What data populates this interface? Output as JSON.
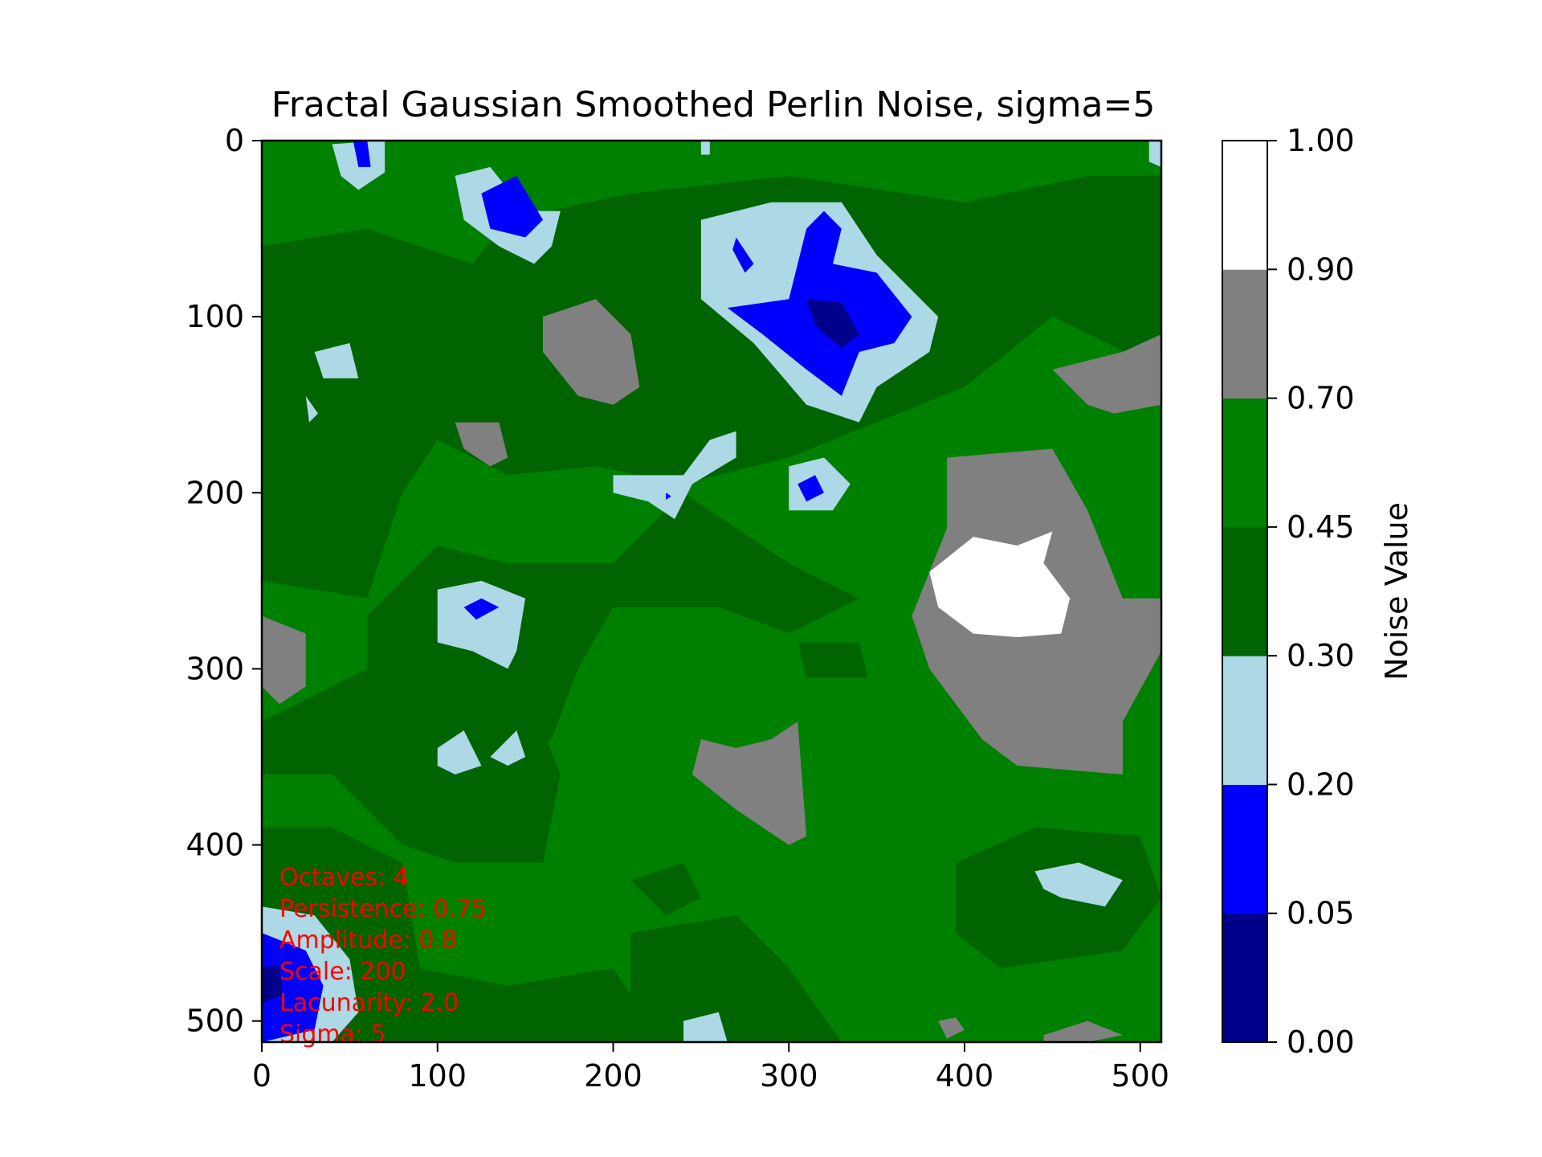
{
  "chart_data": {
    "type": "heatmap",
    "title": "Fractal Gaussian Smoothed Perlin Noise, sigma=5",
    "xlim": [
      0,
      512
    ],
    "ylim": [
      512,
      0
    ],
    "x_ticks": [
      0,
      100,
      200,
      300,
      400,
      500
    ],
    "y_ticks": [
      0,
      100,
      200,
      300,
      400,
      500
    ],
    "grid": false,
    "colorbar": {
      "label": "Noise Value",
      "boundaries": [
        0.0,
        0.05,
        0.2,
        0.3,
        0.45,
        0.7,
        0.9,
        1.0
      ],
      "tick_labels": [
        "0.00",
        "0.05",
        "0.20",
        "0.30",
        "0.45",
        "0.70",
        "0.90",
        "1.00"
      ],
      "colors": [
        "#00008b",
        "#0000ff",
        "#add8e6",
        "#006400",
        "#008000",
        "#808080",
        "#ffffff"
      ]
    },
    "annotation": {
      "color": "#ff0000",
      "lines": [
        "Octaves: 4",
        "Persistence: 0.75",
        "Amplitude: 0.8",
        "Scale: 200",
        "Lacunarity: 2.0",
        "Sigma: 5"
      ]
    },
    "regions": [
      {
        "level": 3,
        "points": [
          [
            0,
            60
          ],
          [
            60,
            50
          ],
          [
            120,
            70
          ],
          [
            140,
            45
          ],
          [
            210,
            30
          ],
          [
            300,
            20
          ],
          [
            400,
            35
          ],
          [
            470,
            20
          ],
          [
            512,
            20
          ],
          [
            512,
            130
          ],
          [
            450,
            100
          ],
          [
            400,
            140
          ],
          [
            300,
            180
          ],
          [
            240,
            195
          ],
          [
            190,
            185
          ],
          [
            140,
            190
          ],
          [
            100,
            170
          ],
          [
            80,
            200
          ],
          [
            60,
            260
          ],
          [
            0,
            250
          ]
        ]
      },
      {
        "level": 3,
        "points": [
          [
            140,
            240
          ],
          [
            200,
            240
          ],
          [
            240,
            200
          ],
          [
            300,
            240
          ],
          [
            340,
            260
          ],
          [
            300,
            280
          ],
          [
            260,
            265
          ],
          [
            200,
            265
          ],
          [
            180,
            300
          ],
          [
            165,
            340
          ],
          [
            140,
            360
          ],
          [
            90,
            340
          ],
          [
            60,
            320
          ],
          [
            60,
            270
          ],
          [
            100,
            230
          ]
        ]
      },
      {
        "level": 3,
        "points": [
          [
            0,
            330
          ],
          [
            60,
            300
          ],
          [
            150,
            310
          ],
          [
            170,
            360
          ],
          [
            160,
            410
          ],
          [
            110,
            410
          ],
          [
            80,
            400
          ],
          [
            40,
            360
          ],
          [
            0,
            360
          ]
        ]
      },
      {
        "level": 3,
        "points": [
          [
            0,
            390
          ],
          [
            40,
            390
          ],
          [
            80,
            410
          ],
          [
            90,
            470
          ],
          [
            140,
            480
          ],
          [
            200,
            470
          ],
          [
            220,
            500
          ],
          [
            220,
            512
          ],
          [
            0,
            512
          ]
        ]
      },
      {
        "level": 3,
        "points": [
          [
            210,
            450
          ],
          [
            270,
            440
          ],
          [
            300,
            470
          ],
          [
            330,
            512
          ],
          [
            210,
            512
          ]
        ]
      },
      {
        "level": 3,
        "points": [
          [
            395,
            410
          ],
          [
            440,
            390
          ],
          [
            500,
            395
          ],
          [
            512,
            430
          ],
          [
            490,
            460
          ],
          [
            420,
            470
          ],
          [
            395,
            450
          ]
        ]
      },
      {
        "level": 3,
        "points": [
          [
            210,
            420
          ],
          [
            240,
            410
          ],
          [
            250,
            430
          ],
          [
            230,
            440
          ]
        ]
      },
      {
        "level": 3,
        "points": [
          [
            305,
            285
          ],
          [
            340,
            285
          ],
          [
            345,
            305
          ],
          [
            310,
            305
          ]
        ]
      },
      {
        "level": 5,
        "points": [
          [
            160,
            100
          ],
          [
            190,
            90
          ],
          [
            210,
            110
          ],
          [
            215,
            140
          ],
          [
            200,
            150
          ],
          [
            180,
            145
          ],
          [
            160,
            120
          ]
        ]
      },
      {
        "level": 5,
        "points": [
          [
            110,
            160
          ],
          [
            135,
            160
          ],
          [
            140,
            180
          ],
          [
            130,
            185
          ],
          [
            115,
            175
          ]
        ]
      },
      {
        "level": 5,
        "points": [
          [
            0,
            270
          ],
          [
            25,
            280
          ],
          [
            25,
            310
          ],
          [
            10,
            320
          ],
          [
            0,
            310
          ]
        ]
      },
      {
        "level": 5,
        "points": [
          [
            390,
            180
          ],
          [
            450,
            175
          ],
          [
            470,
            210
          ],
          [
            490,
            260
          ],
          [
            512,
            260
          ],
          [
            512,
            290
          ],
          [
            490,
            330
          ],
          [
            490,
            360
          ],
          [
            430,
            355
          ],
          [
            410,
            340
          ],
          [
            380,
            300
          ],
          [
            370,
            270
          ],
          [
            390,
            220
          ]
        ]
      },
      {
        "level": 5,
        "points": [
          [
            450,
            130
          ],
          [
            490,
            120
          ],
          [
            512,
            110
          ],
          [
            512,
            150
          ],
          [
            485,
            155
          ],
          [
            470,
            150
          ]
        ]
      },
      {
        "level": 5,
        "points": [
          [
            250,
            340
          ],
          [
            270,
            345
          ],
          [
            290,
            340
          ],
          [
            305,
            330
          ],
          [
            310,
            395
          ],
          [
            300,
            400
          ],
          [
            270,
            380
          ],
          [
            245,
            360
          ]
        ]
      },
      {
        "level": 5,
        "points": [
          [
            385,
            500
          ],
          [
            395,
            498
          ],
          [
            400,
            505
          ],
          [
            390,
            510
          ]
        ]
      },
      {
        "level": 5,
        "points": [
          [
            445,
            508
          ],
          [
            470,
            500
          ],
          [
            490,
            508
          ],
          [
            470,
            512
          ],
          [
            445,
            512
          ]
        ]
      },
      {
        "level": 6,
        "points": [
          [
            380,
            245
          ],
          [
            405,
            225
          ],
          [
            430,
            230
          ],
          [
            450,
            222
          ],
          [
            445,
            240
          ],
          [
            460,
            260
          ],
          [
            455,
            280
          ],
          [
            430,
            282
          ],
          [
            405,
            280
          ],
          [
            385,
            265
          ]
        ]
      },
      {
        "level": 2,
        "points": [
          [
            110,
            20
          ],
          [
            130,
            15
          ],
          [
            150,
            40
          ],
          [
            170,
            40
          ],
          [
            165,
            60
          ],
          [
            155,
            70
          ],
          [
            135,
            60
          ],
          [
            115,
            45
          ]
        ]
      },
      {
        "level": 2,
        "points": [
          [
            250,
            45
          ],
          [
            290,
            35
          ],
          [
            330,
            35
          ],
          [
            350,
            65
          ],
          [
            385,
            100
          ],
          [
            380,
            120
          ],
          [
            350,
            140
          ],
          [
            340,
            160
          ],
          [
            310,
            150
          ],
          [
            280,
            115
          ],
          [
            250,
            90
          ]
        ]
      },
      {
        "level": 2,
        "points": [
          [
            40,
            2
          ],
          [
            70,
            0
          ],
          [
            70,
            18
          ],
          [
            55,
            28
          ],
          [
            45,
            20
          ]
        ]
      },
      {
        "level": 2,
        "points": [
          [
            30,
            120
          ],
          [
            50,
            115
          ],
          [
            55,
            135
          ],
          [
            35,
            135
          ]
        ]
      },
      {
        "level": 2,
        "points": [
          [
            25,
            145
          ],
          [
            32,
            155
          ],
          [
            27,
            160
          ]
        ]
      },
      {
        "level": 2,
        "points": [
          [
            200,
            190
          ],
          [
            240,
            190
          ],
          [
            255,
            170
          ],
          [
            270,
            165
          ],
          [
            270,
            180
          ],
          [
            245,
            195
          ],
          [
            235,
            215
          ],
          [
            220,
            205
          ],
          [
            200,
            200
          ]
        ]
      },
      {
        "level": 2,
        "points": [
          [
            300,
            185
          ],
          [
            320,
            180
          ],
          [
            335,
            195
          ],
          [
            325,
            210
          ],
          [
            300,
            210
          ]
        ]
      },
      {
        "level": 2,
        "points": [
          [
            100,
            255
          ],
          [
            125,
            250
          ],
          [
            150,
            260
          ],
          [
            145,
            290
          ],
          [
            140,
            300
          ],
          [
            120,
            290
          ],
          [
            100,
            285
          ]
        ]
      },
      {
        "level": 2,
        "points": [
          [
            100,
            345
          ],
          [
            115,
            335
          ],
          [
            125,
            355
          ],
          [
            110,
            360
          ],
          [
            100,
            355
          ]
        ]
      },
      {
        "level": 2,
        "points": [
          [
            130,
            350
          ],
          [
            145,
            335
          ],
          [
            150,
            350
          ],
          [
            140,
            355
          ]
        ]
      },
      {
        "level": 2,
        "points": [
          [
            440,
            415
          ],
          [
            465,
            410
          ],
          [
            490,
            420
          ],
          [
            480,
            435
          ],
          [
            455,
            430
          ],
          [
            445,
            425
          ]
        ]
      },
      {
        "level": 2,
        "points": [
          [
            0,
            435
          ],
          [
            30,
            440
          ],
          [
            50,
            465
          ],
          [
            55,
            495
          ],
          [
            40,
            512
          ],
          [
            0,
            512
          ]
        ]
      },
      {
        "level": 2,
        "points": [
          [
            240,
            500
          ],
          [
            260,
            495
          ],
          [
            265,
            512
          ],
          [
            240,
            512
          ]
        ]
      },
      {
        "level": 2,
        "points": [
          [
            505,
            0
          ],
          [
            512,
            0
          ],
          [
            512,
            15
          ],
          [
            505,
            12
          ]
        ]
      },
      {
        "level": 2,
        "points": [
          [
            250,
            0
          ],
          [
            255,
            0
          ],
          [
            255,
            8
          ],
          [
            250,
            8
          ]
        ]
      },
      {
        "level": 1,
        "points": [
          [
            125,
            30
          ],
          [
            145,
            20
          ],
          [
            160,
            45
          ],
          [
            150,
            55
          ],
          [
            130,
            50
          ]
        ]
      },
      {
        "level": 1,
        "points": [
          [
            265,
            95
          ],
          [
            300,
            90
          ],
          [
            310,
            50
          ],
          [
            320,
            40
          ],
          [
            330,
            50
          ],
          [
            325,
            70
          ],
          [
            350,
            75
          ],
          [
            370,
            100
          ],
          [
            360,
            115
          ],
          [
            340,
            120
          ],
          [
            330,
            145
          ],
          [
            310,
            130
          ],
          [
            285,
            110
          ]
        ]
      },
      {
        "level": 1,
        "points": [
          [
            270,
            55
          ],
          [
            280,
            70
          ],
          [
            275,
            75
          ],
          [
            268,
            62
          ]
        ]
      },
      {
        "level": 1,
        "points": [
          [
            52,
            0
          ],
          [
            60,
            0
          ],
          [
            62,
            15
          ],
          [
            55,
            15
          ]
        ]
      },
      {
        "level": 1,
        "points": [
          [
            305,
            195
          ],
          [
            315,
            190
          ],
          [
            320,
            200
          ],
          [
            310,
            205
          ]
        ]
      },
      {
        "level": 1,
        "points": [
          [
            230,
            200
          ],
          [
            233,
            202
          ],
          [
            230,
            204
          ]
        ]
      },
      {
        "level": 1,
        "points": [
          [
            115,
            265
          ],
          [
            125,
            260
          ],
          [
            135,
            265
          ],
          [
            122,
            272
          ]
        ]
      },
      {
        "level": 1,
        "points": [
          [
            0,
            450
          ],
          [
            25,
            460
          ],
          [
            35,
            480
          ],
          [
            30,
            505
          ],
          [
            0,
            512
          ]
        ]
      },
      {
        "level": 0,
        "points": [
          [
            310,
            90
          ],
          [
            330,
            92
          ],
          [
            340,
            110
          ],
          [
            330,
            118
          ],
          [
            315,
            105
          ]
        ]
      },
      {
        "level": 0,
        "points": [
          [
            0,
            470
          ],
          [
            10,
            468
          ],
          [
            12,
            485
          ],
          [
            0,
            490
          ]
        ]
      }
    ]
  }
}
